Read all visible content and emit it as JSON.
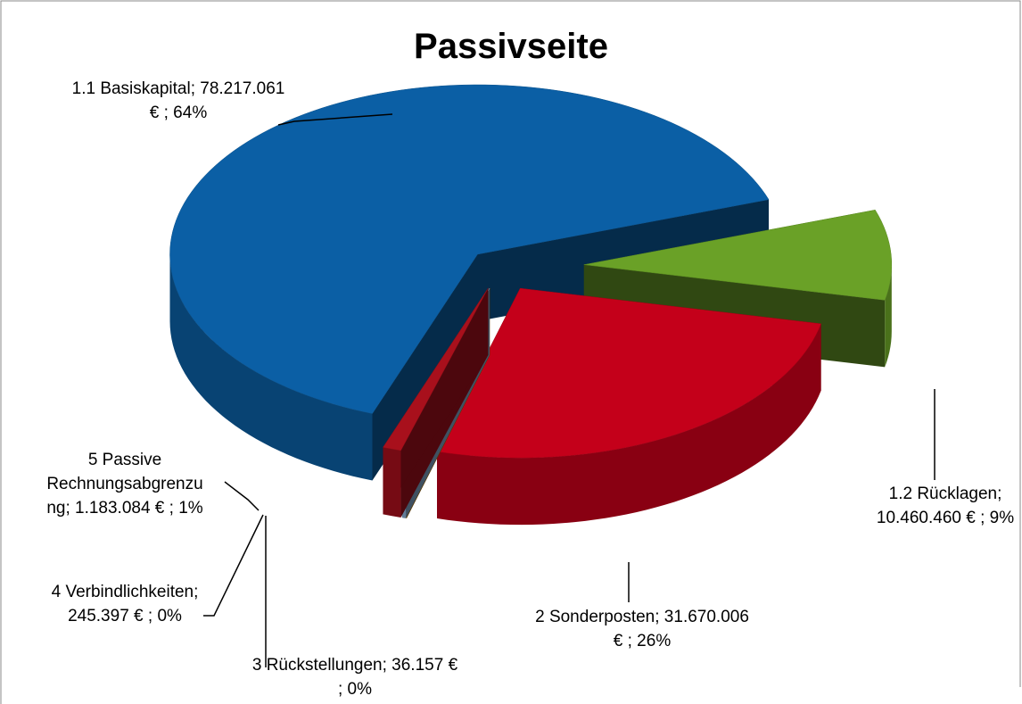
{
  "chart_data": {
    "type": "pie",
    "title": "Passivseite",
    "labels": [
      "1.1 Basiskapital; 78.217.061 € ; 64%",
      "1.2 Rücklagen; 10.460.460 € ; 9%",
      "2 Sonderposten; 31.670.006 € ; 26%",
      "3 Rückstellungen; 36.157 € ; 0%",
      "4 Verbindlichkeiten; 245.397 € ; 0%",
      "5 Passive Rechnungsabgrenzung;  1.183.084 € ; 1%"
    ],
    "values": [
      78217061,
      10460460,
      31670006,
      36157,
      245397,
      1183084
    ],
    "colors": [
      "#0b5fa5",
      "#6aa127",
      "#c4001a",
      "#c07800",
      "#8cb3d9",
      "#a8101c"
    ]
  }
}
